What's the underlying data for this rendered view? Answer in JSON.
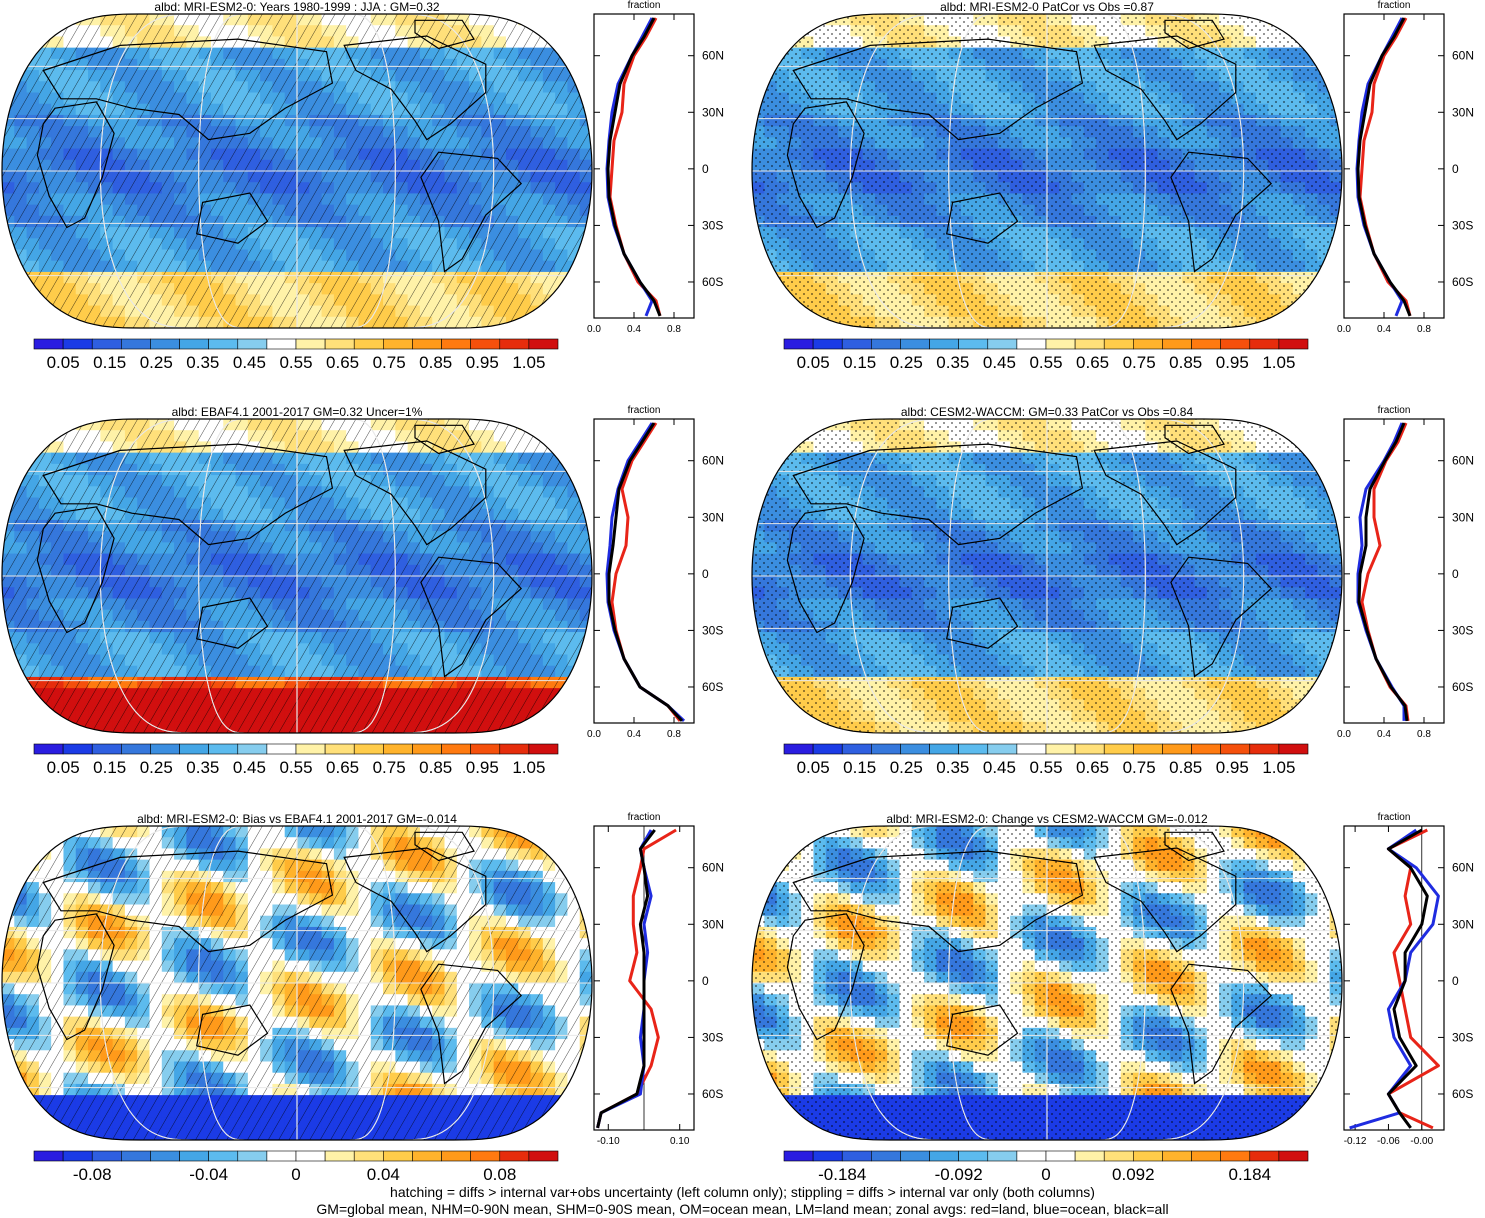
{
  "panels": [
    {
      "title": "albd: MRI-ESM2-0: Years 1980-1999 : JJA : GM=0.32",
      "zonal_title": "fraction",
      "type": "abs",
      "cbar_labels": [
        "0.05",
        "0.15",
        "0.25",
        "0.35",
        "0.45",
        "0.55",
        "0.65",
        "0.75",
        "0.85",
        "0.95",
        "1.05"
      ],
      "zonal_xticks": [
        "0.0",
        "0.4",
        "0.8"
      ],
      "zonal_yticks": [
        "60N",
        "30N",
        "0",
        "30S",
        "60S"
      ],
      "pattern": "hatch"
    },
    {
      "title": "albd: MRI-ESM2-0 PatCor vs Obs =0.87",
      "zonal_title": "fraction",
      "type": "abs",
      "cbar_labels": [
        "0.05",
        "0.15",
        "0.25",
        "0.35",
        "0.45",
        "0.55",
        "0.65",
        "0.75",
        "0.85",
        "0.95",
        "1.05"
      ],
      "zonal_xticks": [
        "0.0",
        "0.4",
        "0.8"
      ],
      "zonal_yticks": [
        "60N",
        "30N",
        "0",
        "30S",
        "60S"
      ],
      "pattern": "stipple"
    },
    {
      "title": "albd: EBAF4.1 2001-2017 GM=0.32 Uncer=1%",
      "zonal_title": "fraction",
      "type": "obs",
      "cbar_labels": [
        "0.05",
        "0.15",
        "0.25",
        "0.35",
        "0.45",
        "0.55",
        "0.65",
        "0.75",
        "0.85",
        "0.95",
        "1.05"
      ],
      "zonal_xticks": [
        "0.0",
        "0.4",
        "0.8"
      ],
      "zonal_yticks": [
        "60N",
        "30N",
        "0",
        "30S",
        "60S"
      ],
      "pattern": "hatch"
    },
    {
      "title": "albd: CESM2-WACCM: GM=0.33 PatCor vs Obs =0.84",
      "zonal_title": "fraction",
      "type": "abs",
      "cbar_labels": [
        "0.05",
        "0.15",
        "0.25",
        "0.35",
        "0.45",
        "0.55",
        "0.65",
        "0.75",
        "0.85",
        "0.95",
        "1.05"
      ],
      "zonal_xticks": [
        "0.0",
        "0.4",
        "0.8"
      ],
      "zonal_yticks": [
        "60N",
        "30N",
        "0",
        "30S",
        "60S"
      ],
      "pattern": "stipple"
    },
    {
      "title": "albd: MRI-ESM2-0: Bias vs EBAF4.1 2001-2017 GM=-0.014",
      "zonal_title": "fraction",
      "type": "diff",
      "cbar_labels": [
        "-0.08",
        "-0.04",
        "0",
        "0.04",
        "0.08"
      ],
      "zonal_xticks": [
        "-0.10",
        "0.10"
      ],
      "zonal_yticks": [
        "60N",
        "30N",
        "0",
        "30S",
        "60S"
      ],
      "pattern": "hatch"
    },
    {
      "title": "albd: MRI-ESM2-0: Change vs CESM2-WACCM GM=-0.012",
      "zonal_title": "fraction",
      "type": "diff",
      "cbar_labels": [
        "-0.184",
        "-0.092",
        "0",
        "0.092",
        "0.184"
      ],
      "zonal_xticks": [
        "-0.12",
        "-0.06",
        "-0.00"
      ],
      "zonal_yticks": [
        "60N",
        "30N",
        "0",
        "30S",
        "60S"
      ],
      "pattern": "stipple"
    }
  ],
  "footer": {
    "line1": "hatching = diffs > internal var+obs uncertainty (left column only); stippling = diffs > internal var only (both columns)",
    "line2": "GM=global mean, NHM=0-90N mean, SHM=0-90S mean, OM=ocean mean, LM=land mean; zonal avgs: red=land, blue=ocean, black=all"
  },
  "colors": {
    "abs_scale": [
      "#2a1de0",
      "#1b3be6",
      "#2f5fe0",
      "#3577dc",
      "#3b8ee0",
      "#44a6e6",
      "#5cbbee",
      "#86cdee",
      "#ffffff",
      "#fff2a8",
      "#ffe07a",
      "#ffcc4a",
      "#ffb32c",
      "#ff9a1a",
      "#ff7a10",
      "#f5500c",
      "#e62d0c",
      "#d10f0f"
    ],
    "diff_scale": [
      "#2a1de0",
      "#1b3be6",
      "#2f5fe0",
      "#3577dc",
      "#3b8ee0",
      "#44a6e6",
      "#5cbbee",
      "#86cdee",
      "#ffffff",
      "#ffffff",
      "#fff2a8",
      "#ffe07a",
      "#ffcc4a",
      "#ffb32c",
      "#ff9a1a",
      "#ff7a10",
      "#e62d0c",
      "#d10f0f"
    ],
    "land": "#e82418",
    "ocean": "#1f2ce0",
    "all": "#000000"
  },
  "chart_data": [
    {
      "type": "heatmap",
      "title": "albd: MRI-ESM2-0: Years 1980-1999 : JJA : GM=0.32",
      "colorbar_range": [
        0.05,
        1.05
      ],
      "zonal_mean": {
        "xlabel": "fraction",
        "xlim": [
          0.0,
          1.0
        ],
        "lat": [
          80,
          70,
          60,
          45,
          30,
          15,
          0,
          -15,
          -30,
          -45,
          -60,
          -70,
          -78
        ],
        "land": [
          0.62,
          0.52,
          0.4,
          0.3,
          0.28,
          0.2,
          0.18,
          0.16,
          0.22,
          0.3,
          0.44,
          0.62,
          0.66
        ],
        "ocean": [
          0.58,
          0.48,
          0.38,
          0.24,
          0.18,
          0.15,
          0.13,
          0.14,
          0.2,
          0.3,
          0.46,
          0.58,
          0.52
        ],
        "all": [
          0.6,
          0.5,
          0.38,
          0.26,
          0.21,
          0.16,
          0.14,
          0.15,
          0.21,
          0.3,
          0.46,
          0.6,
          0.66
        ]
      }
    },
    {
      "type": "heatmap",
      "title": "albd: MRI-ESM2-0 PatCor vs Obs =0.87",
      "colorbar_range": [
        0.05,
        1.05
      ],
      "zonal_mean": {
        "xlabel": "fraction",
        "xlim": [
          0.0,
          1.0
        ],
        "lat": [
          80,
          70,
          60,
          45,
          30,
          15,
          0,
          -15,
          -30,
          -45,
          -60,
          -70,
          -78
        ],
        "land": [
          0.62,
          0.52,
          0.4,
          0.3,
          0.28,
          0.2,
          0.18,
          0.16,
          0.22,
          0.3,
          0.44,
          0.62,
          0.66
        ],
        "ocean": [
          0.58,
          0.48,
          0.38,
          0.24,
          0.18,
          0.15,
          0.13,
          0.14,
          0.2,
          0.3,
          0.46,
          0.58,
          0.52
        ],
        "all": [
          0.6,
          0.5,
          0.38,
          0.26,
          0.21,
          0.16,
          0.14,
          0.15,
          0.21,
          0.3,
          0.46,
          0.6,
          0.66
        ]
      }
    },
    {
      "type": "heatmap",
      "title": "albd: EBAF4.1 2001-2017 GM=0.32 Uncer=1%",
      "colorbar_range": [
        0.05,
        1.05
      ],
      "zonal_mean": {
        "xlabel": "fraction",
        "xlim": [
          0.0,
          1.0
        ],
        "lat": [
          80,
          70,
          60,
          45,
          30,
          15,
          0,
          -15,
          -30,
          -45,
          -60,
          -70,
          -78
        ],
        "land": [
          0.62,
          0.5,
          0.38,
          0.28,
          0.34,
          0.32,
          0.22,
          0.18,
          0.22,
          0.3,
          0.46,
          0.74,
          0.86
        ],
        "ocean": [
          0.58,
          0.46,
          0.34,
          0.24,
          0.18,
          0.16,
          0.13,
          0.14,
          0.2,
          0.3,
          0.46,
          0.74,
          0.9
        ],
        "all": [
          0.6,
          0.48,
          0.36,
          0.25,
          0.22,
          0.19,
          0.15,
          0.15,
          0.21,
          0.3,
          0.46,
          0.74,
          0.88
        ]
      }
    },
    {
      "type": "heatmap",
      "title": "albd: CESM2-WACCM: GM=0.33 PatCor vs Obs =0.84",
      "colorbar_range": [
        0.05,
        1.05
      ],
      "zonal_mean": {
        "xlabel": "fraction",
        "xlim": [
          0.0,
          1.0
        ],
        "lat": [
          80,
          70,
          60,
          45,
          30,
          15,
          0,
          -15,
          -30,
          -45,
          -60,
          -70,
          -78
        ],
        "land": [
          0.62,
          0.54,
          0.42,
          0.3,
          0.3,
          0.36,
          0.24,
          0.18,
          0.24,
          0.32,
          0.46,
          0.62,
          0.64
        ],
        "ocean": [
          0.58,
          0.5,
          0.4,
          0.22,
          0.16,
          0.18,
          0.14,
          0.14,
          0.22,
          0.32,
          0.48,
          0.6,
          0.6
        ],
        "all": [
          0.6,
          0.52,
          0.41,
          0.26,
          0.22,
          0.22,
          0.16,
          0.15,
          0.23,
          0.32,
          0.47,
          0.61,
          0.63
        ]
      }
    },
    {
      "type": "heatmap",
      "title": "albd: MRI-ESM2-0: Bias vs EBAF4.1 2001-2017 GM=-0.014",
      "colorbar_range": [
        -0.1,
        0.1
      ],
      "zonal_mean": {
        "xlabel": "fraction",
        "xlim": [
          -0.14,
          0.14
        ],
        "lat": [
          80,
          70,
          60,
          45,
          30,
          15,
          0,
          -15,
          -30,
          -45,
          -60,
          -70,
          -78
        ],
        "land": [
          0.09,
          0.0,
          -0.01,
          -0.03,
          -0.03,
          -0.02,
          -0.04,
          0.02,
          0.04,
          0.02,
          -0.02,
          -0.12,
          -0.13
        ],
        "ocean": [
          0.02,
          -0.01,
          0.0,
          0.02,
          0.0,
          0.01,
          0.0,
          0.0,
          -0.01,
          0.0,
          -0.01,
          -0.12,
          -0.13
        ],
        "all": [
          0.03,
          -0.01,
          0.0,
          0.01,
          -0.01,
          0.0,
          0.0,
          0.0,
          0.0,
          0.0,
          -0.02,
          -0.12,
          -0.13
        ]
      }
    },
    {
      "type": "heatmap",
      "title": "albd: MRI-ESM2-0: Change vs CESM2-WACCM GM=-0.012",
      "colorbar_range": [
        -0.23,
        0.23
      ],
      "zonal_mean": {
        "xlabel": "fraction",
        "xlim": [
          -0.14,
          0.04
        ],
        "lat": [
          80,
          70,
          60,
          45,
          30,
          15,
          0,
          -15,
          -30,
          -45,
          -60,
          -70,
          -78
        ],
        "land": [
          0.01,
          -0.06,
          -0.02,
          -0.03,
          -0.02,
          -0.05,
          -0.04,
          -0.03,
          -0.02,
          0.03,
          -0.06,
          -0.04,
          0.02
        ],
        "ocean": [
          -0.01,
          -0.06,
          -0.01,
          0.03,
          0.02,
          -0.02,
          -0.03,
          -0.06,
          -0.05,
          -0.02,
          -0.06,
          -0.04,
          -0.13
        ],
        "all": [
          0.0,
          -0.06,
          -0.02,
          0.01,
          0.0,
          -0.03,
          -0.03,
          -0.05,
          -0.04,
          -0.01,
          -0.06,
          -0.04,
          -0.02
        ]
      }
    }
  ]
}
